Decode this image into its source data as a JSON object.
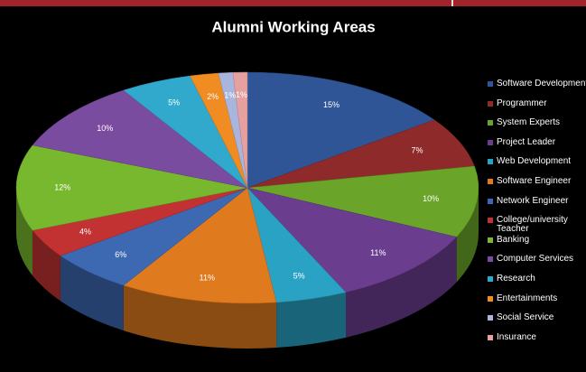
{
  "chart_data": {
    "type": "pie",
    "title": "Alumni Working Areas",
    "categories": [
      "Software Development",
      "Programmer",
      "System Experts",
      "Project Leader",
      "Web Development",
      "Software Engineer",
      "Network Engineer",
      "College/university Teacher",
      "Banking",
      "Computer Services",
      "Research",
      "Entertainments",
      "Social Service",
      "Insurance"
    ],
    "values": [
      15,
      7,
      10,
      11,
      5,
      11,
      6,
      4,
      12,
      10,
      5,
      2,
      1,
      1
    ],
    "value_labels": [
      "15%",
      "7%",
      "10%",
      "11%",
      "5%",
      "11%",
      "6%",
      "4%",
      "12%",
      "10%",
      "5%",
      "2%",
      "1%",
      "1%"
    ],
    "colors": [
      "#2f5597",
      "#8e2a2a",
      "#6aa52a",
      "#6a3d8f",
      "#2aa2c4",
      "#e07a1f",
      "#3d68b2",
      "#c23232",
      "#78b82f",
      "#7a4ca0",
      "#31a9cd",
      "#f08c22",
      "#a9b5dd",
      "#e6a0a0"
    ],
    "legend": "right"
  }
}
